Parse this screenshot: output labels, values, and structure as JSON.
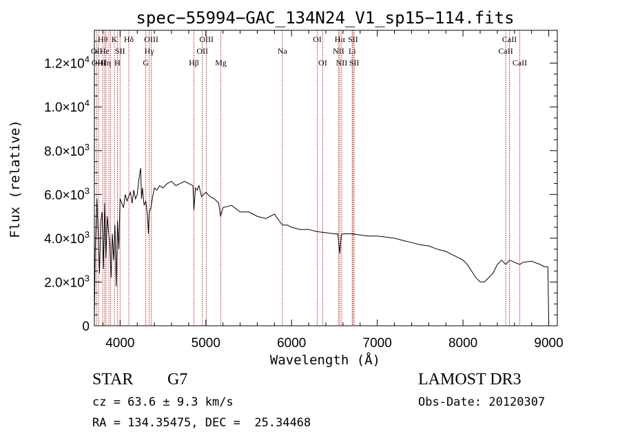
{
  "chart_data": {
    "type": "line",
    "title": "spec−55994−GAC_134N24_V1_sp15−114.fits",
    "xlabel": "Wavelength (Å)",
    "ylabel": "Flux (relative)",
    "xlim": [
      3700,
      9100
    ],
    "ylim": [
      0,
      13500
    ],
    "x_ticks": [
      {
        "value": 4000,
        "label": "4000"
      },
      {
        "value": 5000,
        "label": "5000"
      },
      {
        "value": 6000,
        "label": "6000"
      },
      {
        "value": 7000,
        "label": "7000"
      },
      {
        "value": 8000,
        "label": "8000"
      },
      {
        "value": 9000,
        "label": "9000"
      }
    ],
    "y_ticks": [
      {
        "value": 0,
        "mant": "0",
        "exp": ""
      },
      {
        "value": 2000,
        "mant": "2.0×10",
        "exp": "3"
      },
      {
        "value": 4000,
        "mant": "4.0×10",
        "exp": "3"
      },
      {
        "value": 6000,
        "mant": "6.0×10",
        "exp": "3"
      },
      {
        "value": 8000,
        "mant": "8.0×10",
        "exp": "3"
      },
      {
        "value": 10000,
        "mant": "1.0×10",
        "exp": "4"
      },
      {
        "value": 12000,
        "mant": "1.2×10",
        "exp": "4"
      }
    ],
    "series": [
      {
        "name": "flux",
        "x": [
          3700,
          3710,
          3730,
          3745,
          3760,
          3775,
          3790,
          3805,
          3820,
          3835,
          3850,
          3865,
          3880,
          3895,
          3910,
          3925,
          3940,
          3955,
          3970,
          3985,
          4000,
          4020,
          4040,
          4060,
          4080,
          4100,
          4120,
          4140,
          4160,
          4180,
          4200,
          4220,
          4240,
          4250,
          4260,
          4280,
          4300,
          4320,
          4330,
          4340,
          4360,
          4380,
          4400,
          4430,
          4460,
          4500,
          4550,
          4600,
          4650,
          4700,
          4750,
          4800,
          4850,
          4861,
          4880,
          4900,
          4920,
          4950,
          5000,
          5050,
          5100,
          5150,
          5172,
          5200,
          5300,
          5400,
          5500,
          5600,
          5700,
          5800,
          5893,
          5950,
          6000,
          6100,
          6200,
          6300,
          6400,
          6500,
          6540,
          6563,
          6580,
          6600,
          6700,
          6800,
          6900,
          7000,
          7100,
          7200,
          7300,
          7400,
          7500,
          7600,
          7700,
          7800,
          7900,
          8000,
          8050,
          8100,
          8150,
          8200,
          8250,
          8300,
          8350,
          8400,
          8450,
          8498,
          8542,
          8600,
          8662,
          8700,
          8800,
          8900,
          8950,
          8990,
          9000
        ],
        "y": [
          200,
          3400,
          5800,
          4200,
          2400,
          4800,
          5200,
          2600,
          5600,
          3100,
          5000,
          4300,
          3800,
          2200,
          4200,
          3000,
          4600,
          1800,
          4800,
          3500,
          5800,
          5600,
          5400,
          6000,
          5700,
          5900,
          6100,
          5600,
          6200,
          5800,
          6000,
          6700,
          7200,
          5800,
          6300,
          5500,
          5700,
          5000,
          4200,
          5200,
          5400,
          5900,
          6300,
          6200,
          6400,
          6300,
          6500,
          6600,
          6400,
          6500,
          6600,
          6500,
          6400,
          5300,
          6300,
          6200,
          6400,
          5900,
          6100,
          5900,
          5800,
          5600,
          5000,
          5400,
          5500,
          5200,
          5200,
          5000,
          4900,
          5100,
          4600,
          4600,
          4500,
          4400,
          4400,
          4300,
          4250,
          4200,
          4200,
          3300,
          4150,
          4200,
          4200,
          4150,
          4100,
          4100,
          4050,
          4000,
          3900,
          3800,
          3700,
          3650,
          3500,
          3400,
          3200,
          3000,
          2800,
          2500,
          2200,
          2000,
          2000,
          2200,
          2400,
          2800,
          3000,
          2800,
          3000,
          2900,
          2800,
          2900,
          2950,
          2800,
          2700,
          2700,
          100
        ]
      }
    ],
    "lines": [
      {
        "x": 3727,
        "label": "OII",
        "row": 1
      },
      {
        "x": 3750,
        "label": "OIII",
        "row": 2
      },
      {
        "x": 3798,
        "label": "Hθ",
        "row": 0
      },
      {
        "x": 3820,
        "label": "He",
        "row": 1
      },
      {
        "x": 3835,
        "label": "Hη",
        "row": 2
      },
      {
        "x": 3869,
        "label": "",
        "row": 2
      },
      {
        "x": 3889,
        "label": "",
        "row": 2
      },
      {
        "x": 3934,
        "label": "K",
        "row": 0
      },
      {
        "x": 3969,
        "label": "H",
        "row": 2
      },
      {
        "x": 4000,
        "label": "SII",
        "row": 1
      },
      {
        "x": 4102,
        "label": "Hδ",
        "row": 0
      },
      {
        "x": 4300,
        "label": "G",
        "row": 2
      },
      {
        "x": 4340,
        "label": "Hγ",
        "row": 1
      },
      {
        "x": 4363,
        "label": "OIII",
        "row": 0
      },
      {
        "x": 4861,
        "label": "Hβ",
        "row": 2
      },
      {
        "x": 4959,
        "label": "OII",
        "row": 1
      },
      {
        "x": 5007,
        "label": "OIII",
        "row": 0
      },
      {
        "x": 5175,
        "label": "Mg",
        "row": 2
      },
      {
        "x": 5893,
        "label": "Na",
        "row": 1
      },
      {
        "x": 6300,
        "label": "OI",
        "row": 0
      },
      {
        "x": 6364,
        "label": "OI",
        "row": 2
      },
      {
        "x": 6548,
        "label": "NII",
        "row": 1
      },
      {
        "x": 6563,
        "label": "Hα",
        "row": 0
      },
      {
        "x": 6584,
        "label": "NII",
        "row": 2
      },
      {
        "x": 6707,
        "label": "Li",
        "row": 1
      },
      {
        "x": 6717,
        "label": "SII",
        "row": 0
      },
      {
        "x": 6731,
        "label": "SII",
        "row": 2
      },
      {
        "x": 8498,
        "label": "CaII",
        "row": 1
      },
      {
        "x": 8542,
        "label": "CaII",
        "row": 0
      },
      {
        "x": 8662,
        "label": "CaII",
        "row": 2
      }
    ]
  },
  "footer": {
    "object_type": "STAR",
    "subclass": "G7",
    "survey": "LAMOST DR3",
    "cz": "cz = 63.6 ± 9.3 km/s",
    "obs_date": "Obs-Date: 20120307",
    "coords": "RA = 134.35475, DEC =  25.34468"
  },
  "colors": {
    "axis": "#000000",
    "spectrum": "#000000",
    "line_marker": "#b22222"
  }
}
